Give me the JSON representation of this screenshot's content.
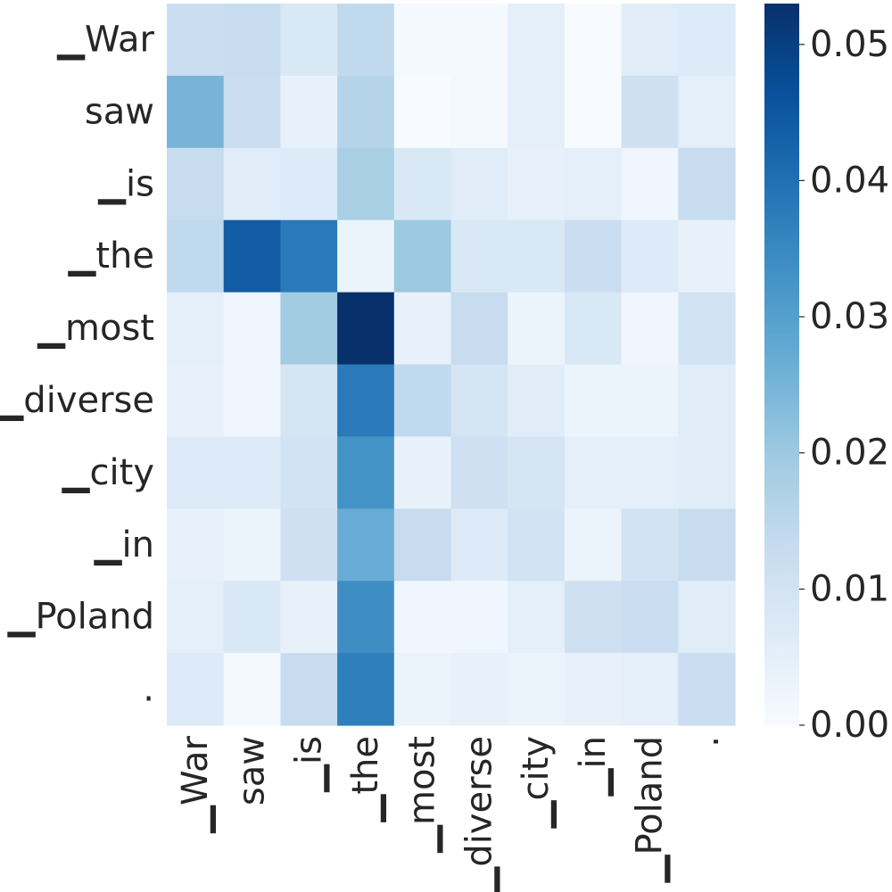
{
  "chart_data": {
    "type": "heatmap",
    "title": "",
    "xlabel": "",
    "ylabel": "",
    "colormap": "Blues",
    "x_labels": [
      "▁War",
      "saw",
      "▁is",
      "▁the",
      "▁most",
      "▁diverse",
      "▁city",
      "▁in",
      "▁Poland",
      "."
    ],
    "y_labels": [
      "▁War",
      "saw",
      "▁is",
      "▁the",
      "▁most",
      "▁diverse",
      "▁city",
      "▁in",
      "▁Poland",
      "."
    ],
    "values": [
      [
        0.012,
        0.013,
        0.008,
        0.014,
        0.001,
        0.001,
        0.005,
        0.0,
        0.006,
        0.007
      ],
      [
        0.025,
        0.012,
        0.004,
        0.016,
        0.0,
        0.001,
        0.005,
        0.0,
        0.011,
        0.005
      ],
      [
        0.013,
        0.006,
        0.007,
        0.018,
        0.008,
        0.006,
        0.004,
        0.005,
        0.002,
        0.013
      ],
      [
        0.014,
        0.044,
        0.038,
        0.003,
        0.02,
        0.008,
        0.008,
        0.012,
        0.007,
        0.004
      ],
      [
        0.005,
        0.002,
        0.019,
        0.053,
        0.004,
        0.013,
        0.003,
        0.008,
        0.002,
        0.01
      ],
      [
        0.004,
        0.002,
        0.009,
        0.038,
        0.014,
        0.009,
        0.006,
        0.003,
        0.003,
        0.006
      ],
      [
        0.007,
        0.007,
        0.01,
        0.033,
        0.004,
        0.011,
        0.009,
        0.005,
        0.005,
        0.006
      ],
      [
        0.004,
        0.003,
        0.011,
        0.027,
        0.013,
        0.007,
        0.01,
        0.003,
        0.01,
        0.013
      ],
      [
        0.005,
        0.008,
        0.004,
        0.034,
        0.002,
        0.002,
        0.005,
        0.011,
        0.012,
        0.006
      ],
      [
        0.007,
        0.001,
        0.013,
        0.037,
        0.003,
        0.004,
        0.003,
        0.004,
        0.005,
        0.012
      ]
    ],
    "colorbar": {
      "min": 0.0,
      "max": 0.053,
      "ticks": [
        0.0,
        0.01,
        0.02,
        0.03,
        0.04,
        0.05
      ],
      "tick_labels": [
        "0.00",
        "0.01",
        "0.02",
        "0.03",
        "0.04",
        "0.05"
      ]
    },
    "grid": false
  }
}
